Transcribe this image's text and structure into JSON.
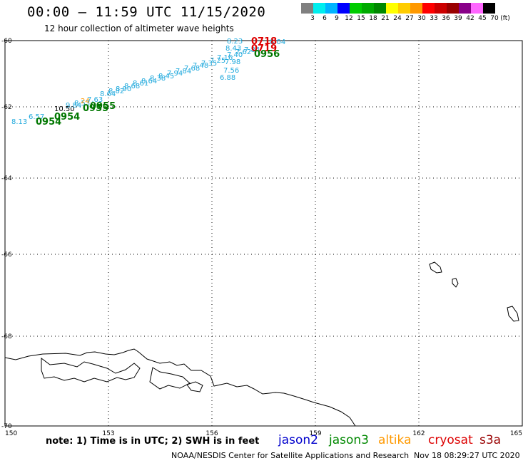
{
  "header": {
    "title": "00:00 — 11:59 UTC 11/15/2020",
    "subtitle": "12 hour collection of altimeter wave heights"
  },
  "scale": {
    "unit": "(ft)",
    "colors": [
      "#808080",
      "#00eeee",
      "#00b4ff",
      "#0000ff",
      "#00cc00",
      "#00aa00",
      "#008800",
      "#ffff00",
      "#ffcc00",
      "#ff9900",
      "#ff0000",
      "#cc0000",
      "#990000",
      "#880088",
      "#ff66ff",
      "#000000"
    ],
    "labels": [
      "3",
      "6",
      "9",
      "12",
      "15",
      "18",
      "21",
      "24",
      "27",
      "30",
      "33",
      "36",
      "39",
      "42",
      "45",
      "70"
    ]
  },
  "map": {
    "lon_range": [
      150,
      165
    ],
    "lat_range": [
      -60,
      -70
    ],
    "lon_ticks": [
      "150",
      "153",
      "156",
      "159",
      "162",
      "165"
    ],
    "lat_ticks": [
      "-60",
      "-62",
      "-64",
      "-66",
      "-68",
      "-70"
    ],
    "observations": [
      {
        "text": "8.13",
        "color": "#22aadd"
      },
      {
        "text": "6.57",
        "color": "#22aadd"
      },
      {
        "text": "10.50",
        "color": "#000000"
      },
      {
        "text": "9.84",
        "color": "#22aadd"
      },
      {
        "text": "8.53",
        "color": "#22aadd"
      },
      {
        "text": "24",
        "color": "#ff9900"
      },
      {
        "text": "7.63",
        "color": "#22aadd"
      },
      {
        "text": "8.23",
        "color": "#22aadd"
      },
      {
        "text": "8.43",
        "color": "#22aadd"
      },
      {
        "text": "7.98",
        "color": "#22aadd"
      },
      {
        "text": "7.56",
        "color": "#22aadd"
      },
      {
        "text": "6.88",
        "color": "#22aadd"
      },
      {
        "text": "8.04",
        "color": "#22aadd"
      }
    ],
    "time_labels": [
      {
        "text": "0954",
        "color": "#007700"
      },
      {
        "text": "0954",
        "color": "#007700"
      },
      {
        "text": "0955",
        "color": "#007700"
      },
      {
        "text": "0955",
        "color": "#007700"
      },
      {
        "text": "0718",
        "color": "#dd0000"
      },
      {
        "text": "0719",
        "color": "#dd0000"
      },
      {
        "text": "0956",
        "color": "#007700"
      }
    ]
  },
  "legend": {
    "note": "note: 1) Time is in UTC; 2) SWH is in feet",
    "satellites": [
      {
        "name": "jason2",
        "color": "#0000cc"
      },
      {
        "name": "jason3",
        "color": "#008800"
      },
      {
        "name": "altika",
        "color": "#ff9900"
      },
      {
        "name": "cryosat",
        "color": "#dd0000"
      },
      {
        "name": "s3a",
        "color": "#990000"
      }
    ]
  },
  "footer": {
    "credit": "NOAA/NESDIS Center for Satellite Applications and Research",
    "timestamp": "Nov 18 08:29:27 UTC 2020"
  }
}
